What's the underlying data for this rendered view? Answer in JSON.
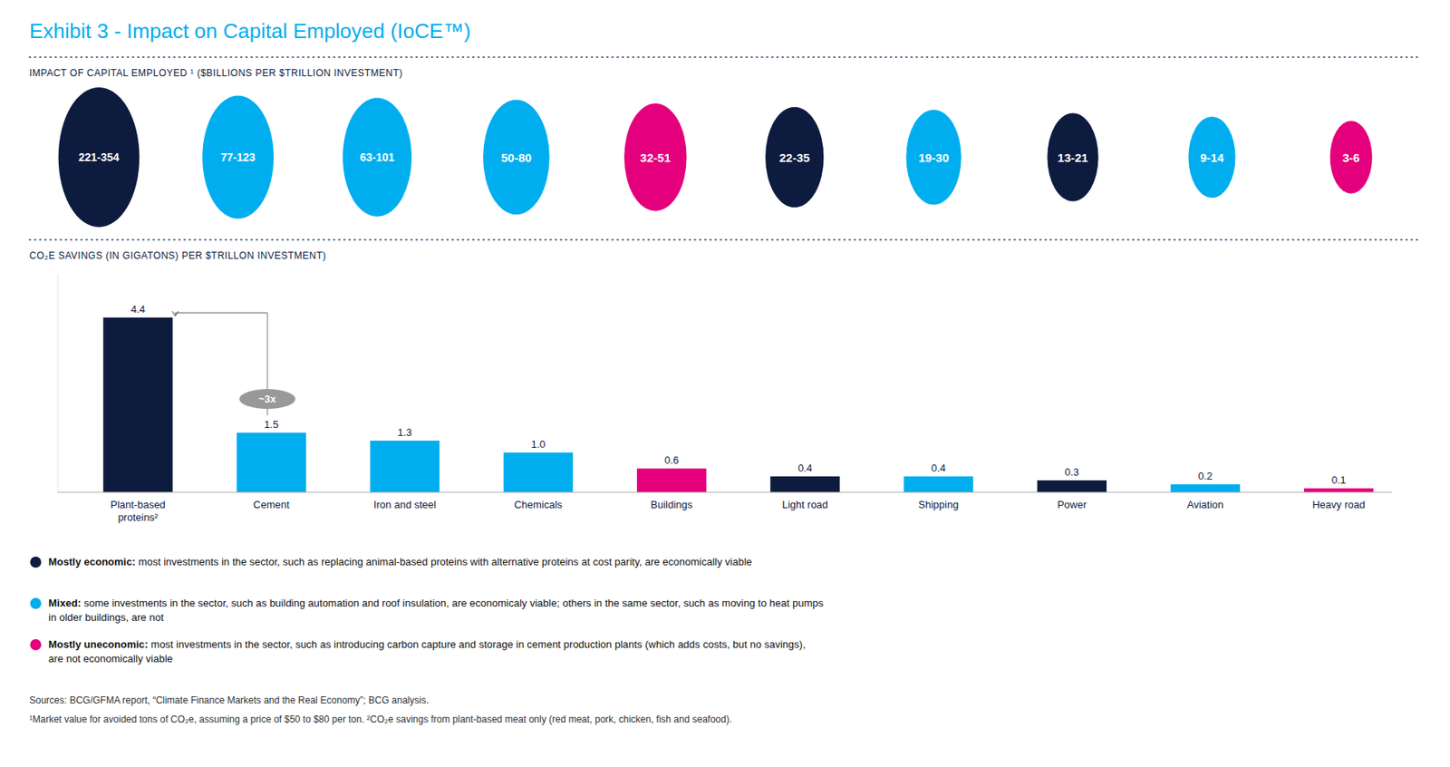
{
  "title": "Exhibit 3 - Impact on Capital Employed (IoCE™)",
  "chart_data": [
    {
      "type": "bubble",
      "title": "IMPACT OF CAPITAL EMPLOYED ¹ ($BILLIONS PER $TRILLION INVESTMENT)",
      "labels": [
        "221-354",
        "77-123",
        "63-101",
        "50-80",
        "32-51",
        "22-35",
        "19-30",
        "13-21",
        "9-14",
        "3-6"
      ],
      "sizes": [
        1.0,
        0.88,
        0.85,
        0.82,
        0.77,
        0.72,
        0.68,
        0.63,
        0.58,
        0.52
      ],
      "colors": [
        "#0D1B3E",
        "#00AEEF",
        "#00AEEF",
        "#00AEEF",
        "#E4007C",
        "#0D1B3E",
        "#00AEEF",
        "#0D1B3E",
        "#00AEEF",
        "#E4007C"
      ]
    },
    {
      "type": "bar",
      "title": "CO₂E SAVINGS (IN GIGATONS) PER $TRILLON INVESTMENT)",
      "categories": [
        "Plant-based\nproteins²",
        "Cement",
        "Iron and steel",
        "Chemicals",
        "Buildings",
        "Light road",
        "Shipping",
        "Power",
        "Aviation",
        "Heavy road"
      ],
      "values": [
        4.4,
        1.5,
        1.3,
        1.0,
        0.6,
        0.4,
        0.4,
        0.3,
        0.2,
        0.1
      ],
      "value_labels": [
        "4.4",
        "1.5",
        "1.3",
        "1.0",
        "0.6",
        "0.4",
        "0.4",
        "0.3",
        "0.2",
        "0.1"
      ],
      "colors": [
        "#0D1B3E",
        "#00AEEF",
        "#00AEEF",
        "#00AEEF",
        "#E4007C",
        "#0D1B3E",
        "#00AEEF",
        "#0D1B3E",
        "#00AEEF",
        "#E4007C"
      ],
      "ylim": [
        0,
        5.5
      ],
      "data_labels": true,
      "tick_labels": "x",
      "annotations": [
        {
          "text": "~3x"
        }
      ]
    }
  ],
  "legend_items": [
    {
      "color": "#0D1B3E",
      "bold_text": "Mostly economic:",
      "text": " most investments in the sector, such as replacing animal-based proteins with alternative proteins at cost parity, are economically viable"
    },
    {
      "color": "#00AEEF",
      "bold_text": "Mixed:",
      "text": " some investments in the sector, such as building automation and roof insulation, are economicaly viable; others in the same sector, such as moving to heat pumps\nin older buildings, are not"
    },
    {
      "color": "#E4007C",
      "bold_text": "Mostly uneconomic:",
      "text": " most investments in the sector, such as introducing carbon capture and storage in cement production plants (which adds costs, but no savings),\nare not economically viable"
    }
  ],
  "notes": [
    "Sources: BCG/GFMA report, “Climate Finance Markets and the Real Economy”; BCG analysis.",
    "¹Market value for avoided tons of CO₂e, assuming a price of $50 to $80 per ton. ²CO₂e savings from  plant-based meat only (red meat, pork, chicken, fish and seafood)."
  ]
}
